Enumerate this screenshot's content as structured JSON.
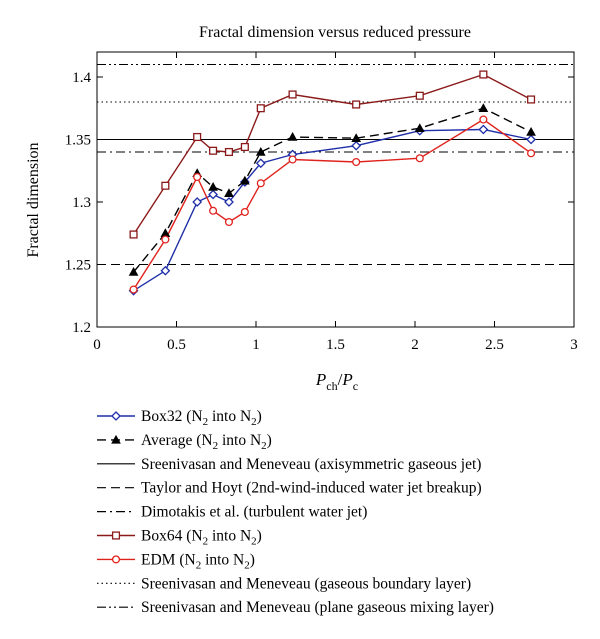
{
  "chart_data": {
    "type": "line",
    "title": "Fractal dimension versus reduced pressure",
    "xlabel": {
      "main": "P",
      "sub1": "ch",
      "slash": "/",
      "main2": "P",
      "sub2": "c"
    },
    "ylabel": "Fractal dimension",
    "xlim": [
      0,
      3
    ],
    "ylim": [
      1.2,
      1.42
    ],
    "xticks": [
      0,
      0.5,
      1,
      1.5,
      2,
      2.5,
      3
    ],
    "xtick_labels": [
      "0",
      "0.5",
      "1",
      "1.5",
      "2",
      "2.5",
      "3"
    ],
    "yticks": [
      1.2,
      1.25,
      1.3,
      1.35,
      1.4
    ],
    "ytick_labels": [
      "1.2",
      "1.25",
      "1.3",
      "1.35",
      "1.4"
    ],
    "grid": false,
    "legend_position": "below",
    "series": [
      {
        "key": "box32",
        "label_main": "Box32 (N",
        "label_rest": " into N",
        "label_end": ")",
        "sub": "2",
        "color": "#1f2fa8",
        "marker": "diamond",
        "dash": "solid",
        "x": [
          0.23,
          0.43,
          0.63,
          0.73,
          0.83,
          0.93,
          1.03,
          1.23,
          1.63,
          2.03,
          2.43,
          2.73
        ],
        "y": [
          1.229,
          1.245,
          1.3,
          1.306,
          1.3,
          1.316,
          1.331,
          1.338,
          1.345,
          1.357,
          1.358,
          1.35
        ]
      },
      {
        "key": "average",
        "label_main": "Average (N",
        "label_rest": " into N",
        "label_end": ")",
        "sub": "2",
        "color": "#000000",
        "marker": "triangle",
        "dash": "dashed",
        "x": [
          0.23,
          0.43,
          0.63,
          0.73,
          0.83,
          0.93,
          1.03,
          1.23,
          1.63,
          2.03,
          2.43,
          2.73
        ],
        "y": [
          1.244,
          1.275,
          1.323,
          1.312,
          1.307,
          1.317,
          1.34,
          1.352,
          1.351,
          1.359,
          1.375,
          1.356
        ]
      },
      {
        "key": "box64",
        "label_main": "Box64 (N",
        "label_rest": " into N",
        "label_end": ")",
        "sub": "2",
        "color": "#8b1a1a",
        "marker": "square",
        "dash": "solid",
        "x": [
          0.23,
          0.43,
          0.63,
          0.73,
          0.83,
          0.93,
          1.03,
          1.23,
          1.63,
          2.03,
          2.43,
          2.73
        ],
        "y": [
          1.274,
          1.313,
          1.352,
          1.341,
          1.34,
          1.344,
          1.375,
          1.386,
          1.378,
          1.385,
          1.402,
          1.382
        ]
      },
      {
        "key": "edm",
        "label_main": "EDM (N",
        "label_rest": " into N",
        "label_end": ")",
        "sub": "2",
        "color": "#e0221c",
        "marker": "circle",
        "dash": "solid",
        "x": [
          0.23,
          0.43,
          0.63,
          0.73,
          0.83,
          0.93,
          1.03,
          1.23,
          1.63,
          2.03,
          2.43,
          2.73
        ],
        "y": [
          1.23,
          1.27,
          1.32,
          1.293,
          1.284,
          1.292,
          1.315,
          1.334,
          1.332,
          1.335,
          1.366,
          1.339
        ]
      }
    ],
    "reference_lines": [
      {
        "key": "sreeni_jet",
        "label": "Sreenivasan and Meneveau (axisymmetric gaseous jet)",
        "y": 1.35,
        "dash": "solid"
      },
      {
        "key": "taylor_hoyt",
        "label": "Taylor and Hoyt (2nd-wind-induced water jet breakup)",
        "y": 1.25,
        "dash": "dashed"
      },
      {
        "key": "dimotakis",
        "label": "Dimotakis et al. (turbulent water jet)",
        "y": 1.34,
        "dash": "dashdot"
      },
      {
        "key": "sreeni_bl",
        "label": "Sreenivasan and Meneveau (gaseous boundary layer)",
        "y": 1.38,
        "dash": "dotted"
      },
      {
        "key": "sreeni_ml",
        "label": "Sreenivasan and Meneveau (plane gaseous mixing layer)",
        "y": 1.41,
        "dash": "dashdotdot"
      }
    ],
    "legend_order": [
      "box32",
      "average",
      "sreeni_jet",
      "taylor_hoyt",
      "dimotakis",
      "box64",
      "edm",
      "sreeni_bl",
      "sreeni_ml"
    ]
  }
}
